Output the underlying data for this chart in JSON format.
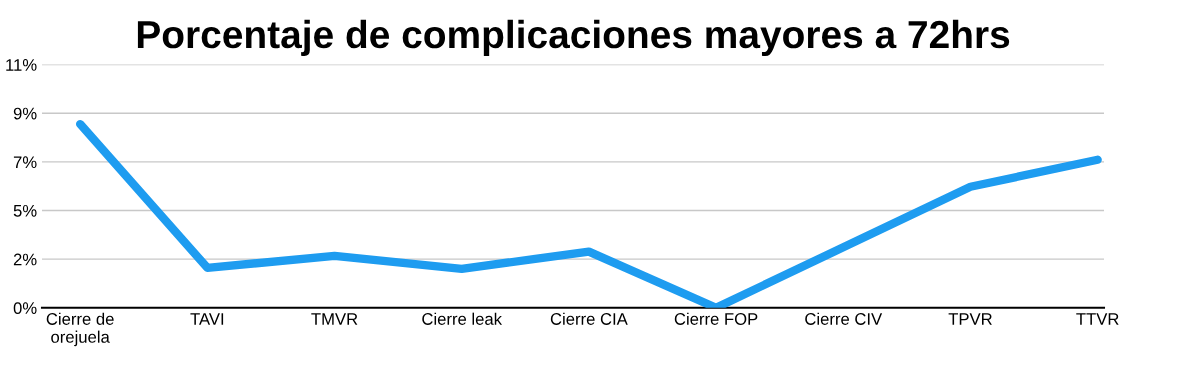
{
  "chart_data": {
    "type": "line",
    "title": "Porcentaje de complicaciones mayores a 72hrs",
    "categories": [
      "Cierre de\norejuela",
      "TAVI",
      "TMVR",
      "Cierre leak",
      "Cierre CIA",
      "Cierre FOP",
      "Cierre CIV",
      "TPVR",
      "TTVR"
    ],
    "series": [
      {
        "color": "#1e9cf0",
        "values": [
          8.5,
          1.85,
          2.4,
          1.8,
          2.6,
          0,
          2.8,
          5.6,
          6.85
        ]
      }
    ],
    "ylim": [
      0,
      11.25
    ],
    "yticks": [
      {
        "value": 0,
        "label": "0%"
      },
      {
        "value": 2.25,
        "label": "2%"
      },
      {
        "value": 4.5,
        "label": "5%"
      },
      {
        "value": 6.75,
        "label": "7%"
      },
      {
        "value": 9,
        "label": "9%"
      },
      {
        "value": 11.25,
        "label": "11%"
      }
    ],
    "grid": "y",
    "legend": false,
    "marker": "none",
    "line_style": "solid"
  }
}
